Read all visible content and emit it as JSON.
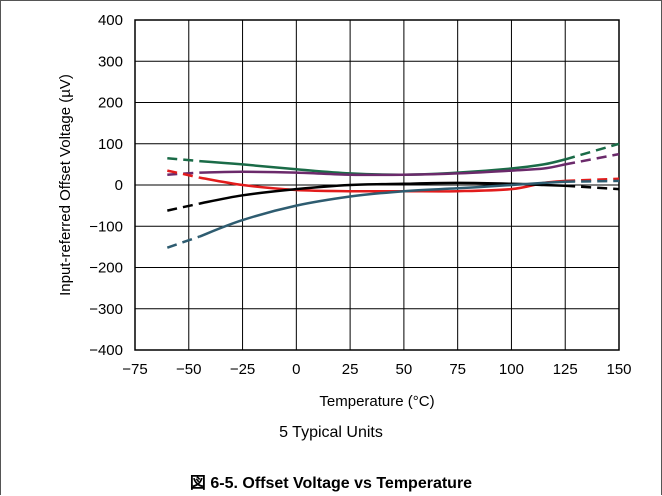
{
  "chart_data": {
    "type": "line",
    "xlabel": "Temperature (°C)",
    "ylabel": "Input-referred Offset Voltage (µV)",
    "xlim": [
      -75,
      150
    ],
    "ylim": [
      -400,
      400
    ],
    "xticks": [
      -75,
      -50,
      -25,
      0,
      25,
      50,
      75,
      100,
      125,
      150
    ],
    "yticks": [
      -400,
      -300,
      -200,
      -100,
      0,
      100,
      200,
      300,
      400
    ],
    "xtick_labels": [
      "−75",
      "−50",
      "−25",
      "0",
      "25",
      "50",
      "75",
      "100",
      "125",
      "150"
    ],
    "ytick_labels": [
      "−400",
      "−300",
      "−200",
      "−100",
      "0",
      "100",
      "200",
      "300",
      "400"
    ],
    "grid": true,
    "note": "5 Typical Units",
    "series": [
      {
        "color": "#1a6b47",
        "x": [
          -60,
          -45,
          -25,
          0,
          25,
          50,
          75,
          100,
          115,
          125,
          150
        ],
        "y": [
          65,
          58,
          50,
          38,
          28,
          25,
          30,
          40,
          50,
          62,
          100
        ]
      },
      {
        "color": "#6b2a6b",
        "x": [
          -60,
          -45,
          -25,
          0,
          25,
          50,
          75,
          100,
          115,
          125,
          150
        ],
        "y": [
          25,
          30,
          32,
          30,
          25,
          25,
          28,
          35,
          40,
          50,
          75
        ]
      },
      {
        "color": "#e21c1c",
        "x": [
          -60,
          -45,
          -25,
          0,
          25,
          50,
          75,
          100,
          115,
          125,
          150
        ],
        "y": [
          35,
          18,
          0,
          -12,
          -15,
          -15,
          -15,
          -10,
          5,
          10,
          15
        ]
      },
      {
        "color": "#000000",
        "x": [
          -60,
          -45,
          -25,
          0,
          25,
          50,
          75,
          100,
          115,
          125,
          150
        ],
        "y": [
          -62,
          -45,
          -25,
          -10,
          0,
          3,
          5,
          3,
          0,
          -2,
          -10
        ]
      },
      {
        "color": "#2e5c70",
        "x": [
          -60,
          -45,
          -25,
          0,
          25,
          50,
          75,
          100,
          115,
          125,
          150
        ],
        "y": [
          -152,
          -125,
          -85,
          -50,
          -28,
          -15,
          -8,
          0,
          5,
          8,
          10
        ]
      }
    ]
  },
  "caption": "図 6-5. Offset Voltage vs Temperature"
}
